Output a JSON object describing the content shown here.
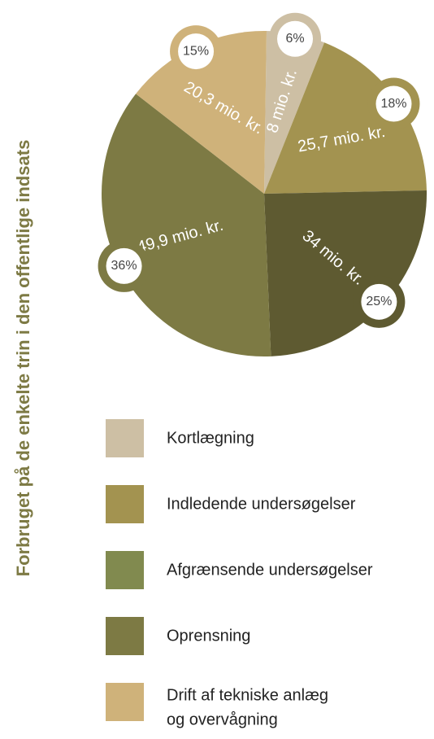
{
  "chart_data": {
    "type": "pie",
    "y_label": "Forbruget på de enkelte trin i den offentlige indsats",
    "categories": [
      "Kortlægning",
      "Indledende undersøgelser",
      "Afgrænsende undersøgelser",
      "Oprensning",
      "Drift af tekniske anlæg og overvågning"
    ],
    "values": [
      8,
      25.7,
      34,
      49.9,
      20.3
    ],
    "value_labels": [
      "8 mio. kr.",
      "25,7 mio. kr.",
      "34 mio. kr.",
      "49,9 mio. kr.",
      "20,3 mio. kr."
    ],
    "percentages": [
      6,
      18,
      25,
      36,
      15
    ],
    "percentage_labels": [
      "6%",
      "18%",
      "25%",
      "36%",
      "15%"
    ],
    "colors": [
      "#cdbfa4",
      "#a39350",
      "#5e5a31",
      "#7d7a44",
      "#cfb27a"
    ],
    "legend_colors": [
      "#cdbfa4",
      "#a39350",
      "#818a4f",
      "#7d7a44",
      "#cfb27a"
    ],
    "legend_lines": [
      [
        "Kortlægning"
      ],
      [
        "Indledende undersøgelser"
      ],
      [
        "Afgrænsende undersøgelser"
      ],
      [
        "Oprensning"
      ],
      [
        "Drift af tekniske anlæg",
        "og overvågning"
      ]
    ]
  }
}
